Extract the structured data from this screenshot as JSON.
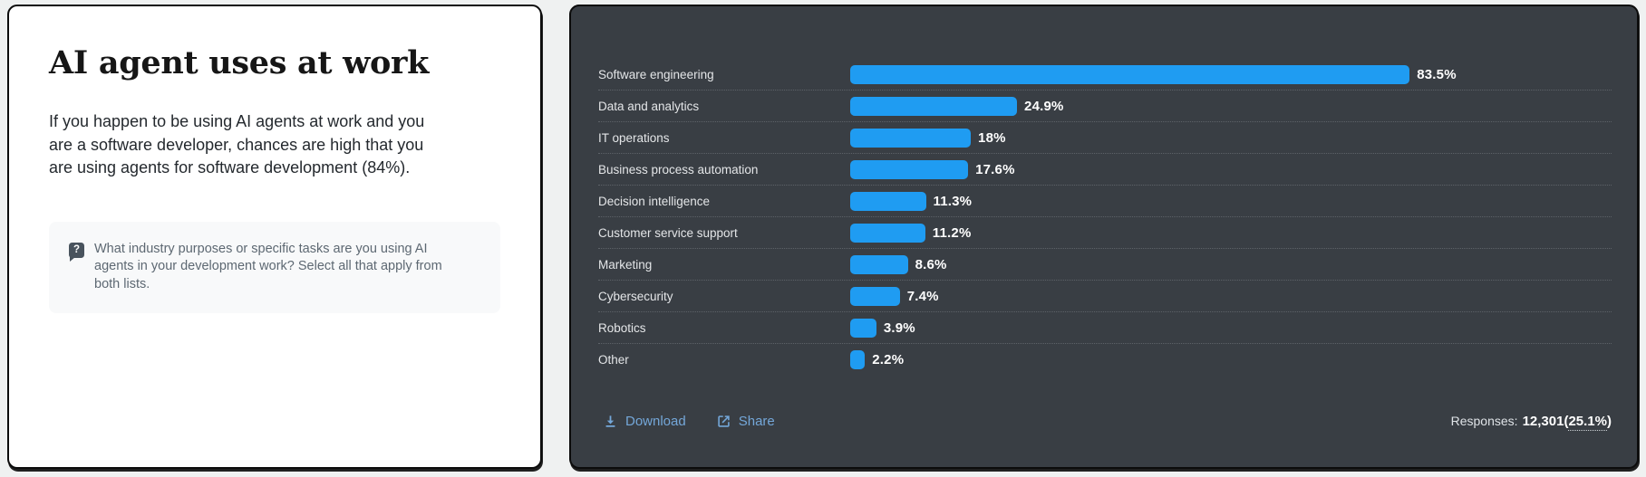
{
  "left_panel": {
    "title": "AI agent uses at work",
    "description": "If you happen to be using AI agents at work and you\nare a software developer, chances are high that you\nare using agents for software development (84%).",
    "question": {
      "icon": "?",
      "text": "What industry purposes or specific tasks are you using AI\nagents in your development work? Select all that apply from\nboth lists."
    }
  },
  "chart_panel": {
    "footer": {
      "download_label": "Download",
      "share_label": "Share",
      "responses_label": "Responses:",
      "responses_value": "12,301",
      "paren_open": "(",
      "responses_pct": "25.1%",
      "paren_close": ")"
    }
  },
  "chart_data": {
    "type": "bar",
    "orientation": "horizontal",
    "title": "",
    "xlabel": "",
    "ylabel": "",
    "xlim": [
      0,
      100
    ],
    "legend": "none",
    "grid": "dotted row separators",
    "categories": [
      "Software engineering",
      "Data and analytics",
      "IT operations",
      "Business process automation",
      "Decision intelligence",
      "Customer service support",
      "Marketing",
      "Cybersecurity",
      "Robotics",
      "Other"
    ],
    "values": [
      83.5,
      24.9,
      18,
      17.6,
      11.3,
      11.2,
      8.6,
      7.4,
      3.9,
      2.2
    ],
    "value_labels": [
      "83.5%",
      "24.9%",
      "18%",
      "17.6%",
      "11.3%",
      "11.2%",
      "8.6%",
      "7.4%",
      "3.9%",
      "2.2%"
    ],
    "bar_color": "#1f9cf2"
  },
  "colors": {
    "panel_dark_bg": "#393e44",
    "bar_blue": "#1f9cf2",
    "link_blue": "#74a7d9",
    "question_box_bg": "#f8f9fa",
    "question_icon_bg": "#49535d"
  }
}
